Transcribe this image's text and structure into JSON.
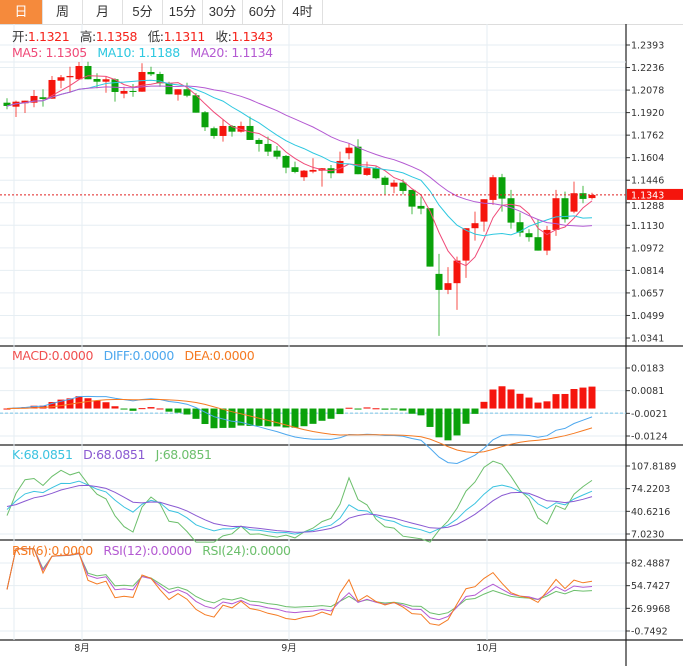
{
  "tabs": [
    "日",
    "周",
    "月",
    "5分",
    "15分",
    "30分",
    "60分",
    "4时"
  ],
  "active_tab": 0,
  "ohlc_legend": {
    "open_label": "开:",
    "open": "1.1321",
    "high_label": "高:",
    "high": "1.1358",
    "low_label": "低:",
    "low": "1.1311",
    "close_label": "收:",
    "close": "1.1343"
  },
  "ma_legend": {
    "ma5": "MA5: 1.1305",
    "ma10": "MA10: 1.1188",
    "ma20": "MA20: 1.1134"
  },
  "macd_legend": {
    "macd": "MACD:0.0000",
    "diff": "DIFF:0.0000",
    "dea": "DEA:0.0000"
  },
  "kdj_legend": {
    "k": "K:68.0851",
    "d": "D:68.0851",
    "j": "J:68.0851"
  },
  "rsi_legend": {
    "rsi6": "RSI(6):0.0000",
    "rsi12": "RSI(12):0.0000",
    "rsi24": "RSI(24):0.0000"
  },
  "last_price_tag": "1.1343",
  "colors": {
    "up": "#f5150d",
    "down": "#0aa10a",
    "ma5": "#f04a78",
    "ma10": "#2ec8e0",
    "ma20": "#b45ad2",
    "diff": "#4ea8ee",
    "dea": "#f57a22",
    "k": "#3cc3e0",
    "d": "#8a5ad2",
    "j": "#6cbf6c",
    "rsi6": "#f57a22",
    "rsi12": "#b45ad2",
    "rsi24": "#6cbf6c",
    "accent": "#f58a3c"
  },
  "chart_data": {
    "type": "candlestick",
    "main_axis": {
      "ticks": [
        "1.2393",
        "1.2236",
        "1.2078",
        "1.1920",
        "1.1762",
        "1.1604",
        "1.1446",
        "1.1288",
        "1.1130",
        "1.0972",
        "1.0814",
        "1.0657",
        "1.0499",
        "1.0341"
      ],
      "range": [
        1.0341,
        1.2393
      ]
    },
    "macd_axis": {
      "ticks": [
        "0.0183",
        "0.0081",
        "-0.0021",
        "-0.0124"
      ],
      "range": [
        -0.0124,
        0.0183
      ]
    },
    "kdj_axis": {
      "ticks": [
        "107.8189",
        "74.2203",
        "40.6216",
        "7.0230"
      ],
      "range": [
        7.023,
        107.8189
      ]
    },
    "rsi_axis": {
      "ticks": [
        "82.4887",
        "54.7427",
        "26.9968",
        "-0.7492"
      ],
      "range": [
        -0.7492,
        82.4887
      ]
    },
    "x_labels": [
      {
        "index": 8,
        "label": "8月"
      },
      {
        "index": 31,
        "label": "9月"
      },
      {
        "index": 53,
        "label": "10月"
      }
    ],
    "candles": [
      [
        1.1989,
        1.202,
        1.1943,
        1.1966
      ],
      [
        1.1961,
        1.2003,
        1.1889,
        1.1996
      ],
      [
        1.1985,
        1.2003,
        1.1917,
        1.2003
      ],
      [
        1.1989,
        1.2078,
        1.1957,
        1.2036
      ],
      [
        1.2027,
        1.2083,
        1.1961,
        1.2015
      ],
      [
        1.2017,
        1.2176,
        1.2017,
        1.2148
      ],
      [
        1.2143,
        1.2183,
        1.209,
        1.2167
      ],
      [
        1.2167,
        1.2241,
        1.2059,
        1.2176
      ],
      [
        1.2153,
        1.2274,
        1.2153,
        1.2246
      ],
      [
        1.2246,
        1.2276,
        1.2153,
        1.2153
      ],
      [
        1.2155,
        1.2195,
        1.209,
        1.2136
      ],
      [
        1.2136,
        1.2171,
        1.2059,
        1.2153
      ],
      [
        1.2153,
        1.216,
        1.1996,
        1.2064
      ],
      [
        1.2052,
        1.2101,
        1.202,
        1.2071
      ],
      [
        1.2071,
        1.212,
        1.2031,
        1.2064
      ],
      [
        1.2066,
        1.2265,
        1.2066,
        1.2204
      ],
      [
        1.2204,
        1.2241,
        1.2176,
        1.2188
      ],
      [
        1.219,
        1.2206,
        1.2101,
        1.2125
      ],
      [
        1.2125,
        1.2136,
        1.2048,
        1.2048
      ],
      [
        1.2045,
        1.2083,
        1.2003,
        1.2083
      ],
      [
        1.2083,
        1.2129,
        1.2027,
        1.2038
      ],
      [
        1.2041,
        1.2057,
        1.1919,
        1.1919
      ],
      [
        1.1922,
        1.1931,
        1.1791,
        1.1817
      ],
      [
        1.181,
        1.1821,
        1.1737,
        1.1756
      ],
      [
        1.1756,
        1.1873,
        1.1716,
        1.1826
      ],
      [
        1.1826,
        1.1833,
        1.1751,
        1.1786
      ],
      [
        1.1786,
        1.1856,
        1.1779,
        1.1826
      ],
      [
        1.1826,
        1.1891,
        1.1728,
        1.1728
      ],
      [
        1.1728,
        1.174,
        1.1646,
        1.17
      ],
      [
        1.17,
        1.1751,
        1.1616,
        1.1646
      ],
      [
        1.1653,
        1.1686,
        1.1593,
        1.1611
      ],
      [
        1.1616,
        1.1623,
        1.1495,
        1.1534
      ],
      [
        1.1537,
        1.1576,
        1.1495,
        1.1504
      ],
      [
        1.1467,
        1.1518,
        1.1441,
        1.1513
      ],
      [
        1.1506,
        1.16,
        1.1495,
        1.1518
      ],
      [
        1.1513,
        1.1532,
        1.1401,
        1.153
      ],
      [
        1.153,
        1.1553,
        1.146,
        1.1495
      ],
      [
        1.1495,
        1.1646,
        1.1495,
        1.1581
      ],
      [
        1.1635,
        1.1705,
        1.1593,
        1.1674
      ],
      [
        1.1681,
        1.1733,
        1.1488,
        1.1488
      ],
      [
        1.1483,
        1.1576,
        1.1476,
        1.153
      ],
      [
        1.153,
        1.1541,
        1.1453,
        1.146
      ],
      [
        1.1464,
        1.1476,
        1.1348,
        1.1413
      ],
      [
        1.1401,
        1.1448,
        1.1355,
        1.1429
      ],
      [
        1.1429,
        1.1453,
        1.1348,
        1.1371
      ],
      [
        1.1378,
        1.1378,
        1.1208,
        1.1261
      ],
      [
        1.1266,
        1.1331,
        1.1208,
        1.1247
      ],
      [
        1.125,
        1.125,
        1.0841,
        1.0841
      ],
      [
        1.079,
        1.093,
        1.0356,
        1.0678
      ],
      [
        1.0678,
        1.0837,
        1.0648,
        1.0725
      ],
      [
        1.0725,
        1.0911,
        1.0538,
        1.0883
      ],
      [
        1.0883,
        1.111,
        1.0762,
        1.111
      ],
      [
        1.111,
        1.1226,
        1.1023,
        1.1145
      ],
      [
        1.1156,
        1.1313,
        1.1086,
        1.1313
      ],
      [
        1.1308,
        1.1483,
        1.1273,
        1.1467
      ],
      [
        1.1467,
        1.149,
        1.1226,
        1.1317
      ],
      [
        1.132,
        1.1378,
        1.1107,
        1.1149
      ],
      [
        1.1152,
        1.1219,
        1.1051,
        1.1079
      ],
      [
        1.1075,
        1.1103,
        1.1016,
        1.1047
      ],
      [
        1.1047,
        1.1173,
        1.0953,
        1.0953
      ],
      [
        1.0953,
        1.1126,
        1.0921,
        1.1098
      ],
      [
        1.1098,
        1.1378,
        1.1056,
        1.132
      ],
      [
        1.132,
        1.1366,
        1.1149,
        1.1173
      ],
      [
        1.1226,
        1.1436,
        1.1215,
        1.1355
      ],
      [
        1.1355,
        1.1406,
        1.1285,
        1.1315
      ],
      [
        1.1321,
        1.1358,
        1.1311,
        1.1343
      ]
    ],
    "candle_format": [
      "open",
      "high",
      "low",
      "close"
    ]
  }
}
